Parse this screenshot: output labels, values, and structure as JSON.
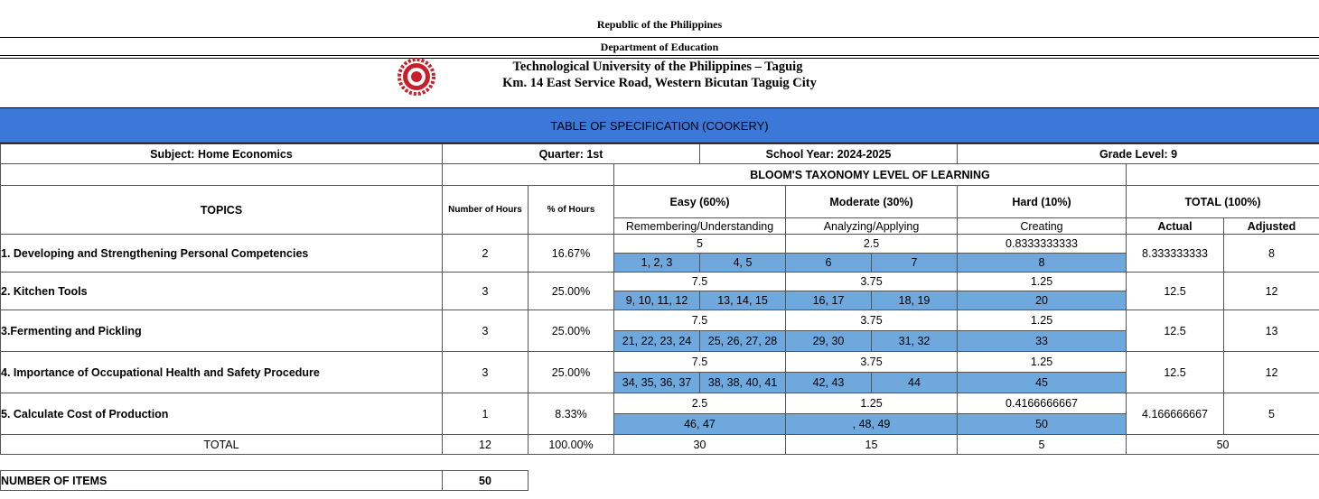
{
  "header": {
    "line1": "Republic of the Philippines",
    "line2": "Department of Education",
    "school": "Technological University of the Philippines – Taguig",
    "address": "Km. 14 East Service Road, Western Bicutan Taguig City"
  },
  "banner": "TABLE OF SPECIFICATION (COOKERY)",
  "info": {
    "subject": "Subject: Home Economics",
    "quarter": "Quarter: 1st",
    "school_year": "School Year: 2024-2025",
    "grade": "Grade Level: 9"
  },
  "table": {
    "bloom": "BLOOM'S TAXONOMY LEVEL OF LEARNING",
    "headers": {
      "topics": "TOPICS",
      "hours": "Number of Hours",
      "percent": "% of Hours",
      "easy": "Easy (60%)",
      "moderate": "Moderate (30%)",
      "hard": "Hard (10%)",
      "total": "TOTAL (100%)",
      "easy_sub": "Remembering/Understanding",
      "moderate_sub": "Analyzing/Applying",
      "hard_sub": "Creating",
      "actual": "Actual",
      "adjusted": "Adjusted"
    },
    "rows": [
      {
        "topic": "1. Developing and Strengthening Personal Competencies",
        "hours": 2,
        "percent": "16.67%",
        "easy": 5,
        "moderate": 2.5,
        "hard": 0.8333333333,
        "easy_items": [
          "1, 2, 3",
          "4, 5"
        ],
        "moderate_items": [
          "6",
          "7"
        ],
        "hard_items": [
          "8"
        ],
        "actual": 8.333333333,
        "adjusted": 8
      },
      {
        "topic": "2. Kitchen Tools",
        "hours": 3,
        "percent": "25.00%",
        "easy": 7.5,
        "moderate": 3.75,
        "hard": 1.25,
        "easy_items": [
          "9, 10, 11, 12",
          "13, 14, 15"
        ],
        "moderate_items": [
          "16, 17",
          "18, 19"
        ],
        "hard_items": [
          "20"
        ],
        "actual": 12.5,
        "adjusted": 12
      },
      {
        "topic": "3.Fermenting and Pickling",
        "hours": 3,
        "percent": "25.00%",
        "easy": 7.5,
        "moderate": 3.75,
        "hard": 1.25,
        "easy_items": [
          "21, 22, 23, 24",
          "25, 26, 27, 28"
        ],
        "moderate_items": [
          "29, 30",
          "31, 32"
        ],
        "hard_items": [
          "33"
        ],
        "actual": 12.5,
        "adjusted": 13
      },
      {
        "topic": "4. Importance of Occupational Health and Safety Procedure",
        "hours": 3,
        "percent": "25.00%",
        "easy": 7.5,
        "moderate": 3.75,
        "hard": 1.25,
        "easy_items": [
          "34, 35, 36, 37",
          "38, 38, 40, 41"
        ],
        "moderate_items": [
          "42, 43",
          "44"
        ],
        "hard_items": [
          "45"
        ],
        "actual": 12.5,
        "adjusted": 12
      },
      {
        "topic": "5. Calculate Cost of Production",
        "hours": 1,
        "percent": "8.33%",
        "easy": 2.5,
        "moderate": 1.25,
        "hard": 0.4166666667,
        "easy_items": [
          "46, 47"
        ],
        "moderate_items": [
          ", 48, 49"
        ],
        "hard_items": [
          "50"
        ],
        "actual": 4.166666667,
        "adjusted": 5
      }
    ],
    "total": {
      "label": "TOTAL",
      "hours": 12,
      "percent": "100.00%",
      "easy": 30,
      "moderate": 15,
      "hard": 5,
      "total": 50
    }
  },
  "items": {
    "label": "NUMBER OF ITEMS",
    "value": 50
  }
}
